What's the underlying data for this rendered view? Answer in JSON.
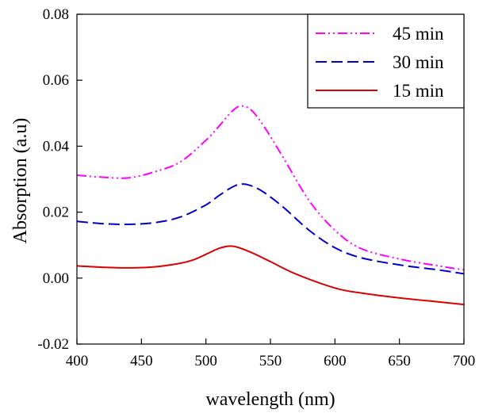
{
  "chart_data": {
    "type": "line",
    "xlabel": "wavelength (nm)",
    "ylabel": "Absorption (a.u)",
    "xlim": [
      400,
      700
    ],
    "ylim": [
      -0.02,
      0.08
    ],
    "xticks": [
      400,
      450,
      500,
      550,
      600,
      650,
      700
    ],
    "yticks": [
      -0.02,
      0.0,
      0.02,
      0.04,
      0.06,
      0.08
    ],
    "xtick_labels": [
      "400",
      "450",
      "500",
      "550",
      "600",
      "650",
      "700"
    ],
    "ytick_labels": [
      "-0.02",
      "0.00",
      "0.02",
      "0.04",
      "0.06",
      "0.08"
    ],
    "grid": false,
    "legend_position": "top-right",
    "series": [
      {
        "name": "45 min",
        "color": "#ff00ff",
        "dash": "dash-dot-dot",
        "x": [
          400,
          420,
          440,
          460,
          480,
          500,
          510,
          520,
          527,
          535,
          545,
          560,
          580,
          600,
          620,
          650,
          680,
          700
        ],
        "y": [
          0.0312,
          0.0306,
          0.0304,
          0.0322,
          0.0352,
          0.0418,
          0.046,
          0.0505,
          0.0522,
          0.051,
          0.046,
          0.0365,
          0.0235,
          0.0145,
          0.009,
          0.0058,
          0.0037,
          0.0025
        ]
      },
      {
        "name": "30 min",
        "color": "#0000cc",
        "dash": "dashed",
        "x": [
          400,
          420,
          440,
          460,
          480,
          500,
          510,
          520,
          527,
          535,
          545,
          560,
          580,
          600,
          620,
          650,
          680,
          700
        ],
        "y": [
          0.0172,
          0.0165,
          0.0163,
          0.0168,
          0.0185,
          0.0222,
          0.025,
          0.0275,
          0.0285,
          0.028,
          0.026,
          0.0215,
          0.0145,
          0.0092,
          0.0062,
          0.004,
          0.0025,
          0.0013
        ]
      },
      {
        "name": "15 min",
        "color": "#dd0000",
        "dash": "solid",
        "x": [
          400,
          420,
          440,
          460,
          480,
          490,
          500,
          510,
          518,
          525,
          535,
          550,
          570,
          600,
          620,
          650,
          680,
          700
        ],
        "y": [
          0.0037,
          0.0033,
          0.0031,
          0.0034,
          0.0045,
          0.0055,
          0.0072,
          0.009,
          0.0097,
          0.0093,
          0.0078,
          0.005,
          0.0012,
          -0.003,
          -0.0045,
          -0.006,
          -0.0072,
          -0.008
        ]
      }
    ]
  }
}
